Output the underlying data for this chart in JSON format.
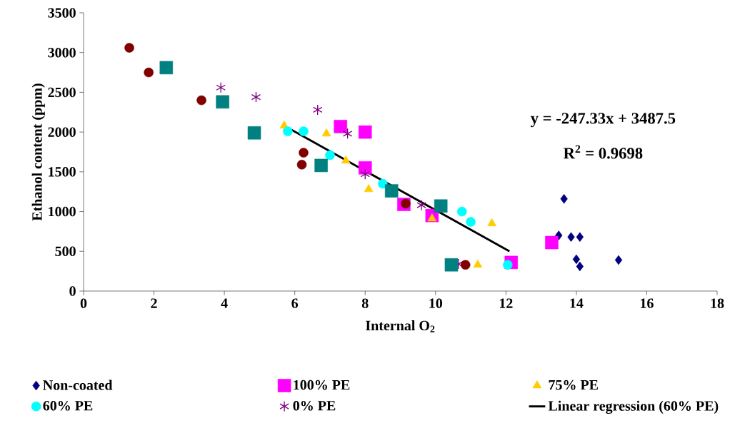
{
  "chart_data": {
    "type": "scatter",
    "xlabel": "Internal O$_{2}$",
    "ylabel": "Ethanol content (ppm)",
    "xlim": [
      0,
      18
    ],
    "xticks": [
      0,
      2,
      4,
      6,
      8,
      10,
      12,
      14,
      16,
      18
    ],
    "ylim": [
      0,
      3500
    ],
    "yticks": [
      0,
      500,
      1000,
      1500,
      2000,
      2500,
      3000,
      3500
    ],
    "grid": false,
    "legend": "bottom",
    "annotations": [
      "y = -247.33x + 3487.5",
      "R$^{2}$ = 0.9698"
    ],
    "series": [
      {
        "name": "Non-coated",
        "color": "#000080",
        "marker": "diamond",
        "x": [
          13.65,
          13.5,
          13.85,
          14.1,
          14.0,
          14.1,
          15.2
        ],
        "values": [
          1160,
          700,
          680,
          680,
          400,
          310,
          390
        ]
      },
      {
        "name": "100% PE",
        "color": "#ff00ff",
        "marker": "square",
        "x": [
          7.3,
          8.0,
          8.0,
          9.1,
          9.9,
          13.3,
          12.15
        ],
        "values": [
          2070,
          2000,
          1550,
          1090,
          950,
          610,
          360
        ]
      },
      {
        "name": "75% PE",
        "color": "#ffcc00",
        "marker": "triangle",
        "x": [
          5.7,
          6.9,
          7.45,
          8.1,
          9.9,
          11.6,
          11.2
        ],
        "values": [
          2080,
          1980,
          1640,
          1280,
          910,
          850,
          330
        ]
      },
      {
        "name": "60% PE",
        "color": "#00ffff",
        "marker": "circle",
        "x": [
          5.8,
          6.25,
          7.0,
          8.5,
          10.75,
          11.0,
          12.05
        ],
        "values": [
          2010,
          2010,
          1710,
          1350,
          1000,
          870,
          330
        ]
      },
      {
        "name": "0% PE",
        "color": "#800080",
        "marker": "cross",
        "x": [
          3.9,
          4.9,
          6.65,
          7.5,
          8.0,
          9.6,
          10.65
        ],
        "values": [
          2560,
          2440,
          2280,
          1980,
          1470,
          1080,
          340
        ]
      },
      {
        "color": "#800000",
        "marker": "circle",
        "x": [
          1.3,
          1.85,
          3.35,
          6.25,
          6.2,
          9.15,
          10.85
        ],
        "values": [
          3060,
          2750,
          2400,
          1740,
          1590,
          1100,
          330
        ]
      },
      {
        "color": "#008080",
        "marker": "square",
        "x": [
          2.35,
          3.95,
          4.85,
          6.75,
          8.75,
          10.15,
          10.45
        ],
        "values": [
          2810,
          2380,
          1990,
          1580,
          1260,
          1070,
          330
        ]
      },
      {
        "name": "Linear regression (60% PE)",
        "type": "line",
        "color": "#000000",
        "marker": "none",
        "line_style": "solid",
        "x": [
          5.9,
          12.1
        ],
        "values": [
          2030,
          500
        ]
      }
    ]
  }
}
